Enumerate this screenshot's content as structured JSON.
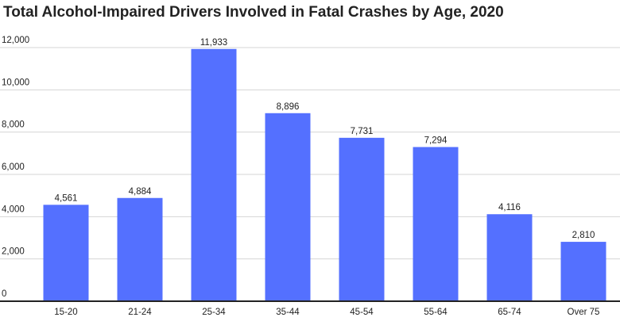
{
  "chart_data": {
    "type": "bar",
    "title": "Total Alcohol-Impaired Drivers Involved in Fatal Crashes by Age, 2020",
    "categories": [
      "15-20",
      "21-24",
      "25-34",
      "35-44",
      "45-54",
      "55-64",
      "65-74",
      "Over 75"
    ],
    "values": [
      4561,
      4884,
      11933,
      8896,
      7731,
      7294,
      4116,
      2810
    ],
    "value_labels": [
      "4,561",
      "4,884",
      "11,933",
      "8,896",
      "7,731",
      "7,294",
      "4,116",
      "2,810"
    ],
    "y_ticks": [
      0,
      2000,
      4000,
      6000,
      8000,
      10000,
      12000
    ],
    "y_tick_labels": [
      "0",
      "2,000",
      "4,000",
      "6,000",
      "8,000",
      "10,000",
      "12,000"
    ],
    "ylim": [
      0,
      12000
    ],
    "grid": true,
    "legend": "none",
    "bar_color": "#5470ff",
    "xlabel": "",
    "ylabel": ""
  }
}
